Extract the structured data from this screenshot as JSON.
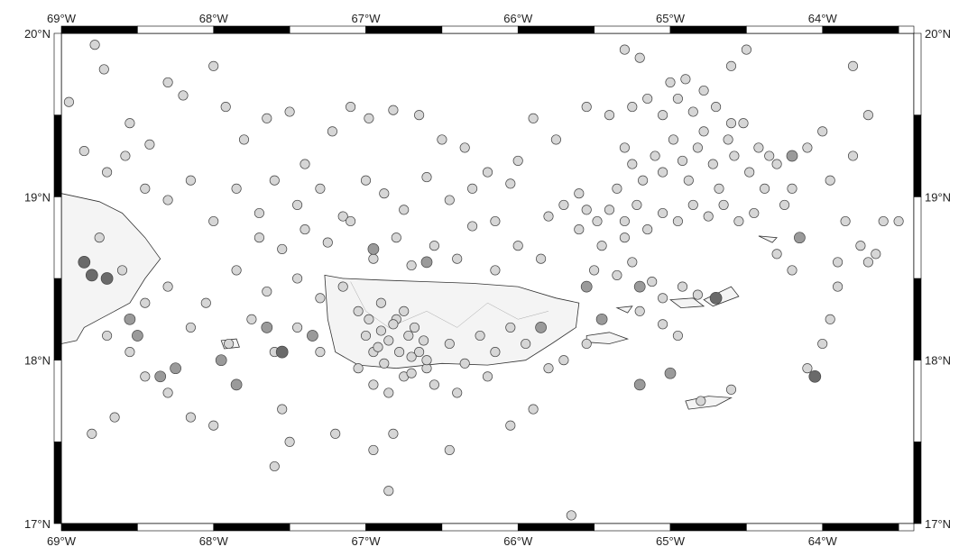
{
  "map": {
    "lon_range": [
      -69,
      -63.4
    ],
    "lat_range": [
      17,
      20
    ],
    "lon_ticks": [
      {
        "lon": -69,
        "label": "69°W"
      },
      {
        "lon": -68,
        "label": "68°W"
      },
      {
        "lon": -67,
        "label": "67°W"
      },
      {
        "lon": -66,
        "label": "66°W"
      },
      {
        "lon": -65,
        "label": "65°W"
      },
      {
        "lon": -64,
        "label": "64°W"
      }
    ],
    "lat_ticks_left": [
      {
        "lat": 20,
        "label": "20°N"
      },
      {
        "lat": 19,
        "label": "19°N"
      },
      {
        "lat": 18,
        "label": "18°N"
      },
      {
        "lat": 17,
        "label": "17°N"
      }
    ],
    "lat_ticks_right": [
      {
        "lat": 20,
        "label": "20°N"
      },
      {
        "lat": 19,
        "label": "19°N"
      },
      {
        "lat": 18,
        "label": "18°N"
      },
      {
        "lat": 17,
        "label": "17°N"
      }
    ],
    "colors": {
      "land_fill": "#f4f4f4",
      "coast": "#333333",
      "marker_light": "#d6d6d6",
      "marker_mid": "#9a9a9a",
      "marker_dark": "#6a6a6a",
      "marker_stroke": "#444444",
      "frame": "#000000"
    },
    "events": [
      [
        -68.78,
        19.93,
        0
      ],
      [
        -68.72,
        19.78,
        0
      ],
      [
        -68.55,
        19.45,
        0
      ],
      [
        -68.42,
        19.32,
        0
      ],
      [
        -68.3,
        19.7,
        0
      ],
      [
        -68.2,
        19.62,
        0
      ],
      [
        -68.0,
        19.8,
        0
      ],
      [
        -67.92,
        19.55,
        0
      ],
      [
        -67.8,
        19.35,
        0
      ],
      [
        -67.65,
        19.48,
        0
      ],
      [
        -67.5,
        19.52,
        0
      ],
      [
        -67.4,
        19.2,
        0
      ],
      [
        -67.22,
        19.4,
        0
      ],
      [
        -67.1,
        19.55,
        0
      ],
      [
        -66.98,
        19.48,
        0
      ],
      [
        -66.82,
        19.53,
        0
      ],
      [
        -66.65,
        19.5,
        0
      ],
      [
        -66.5,
        19.35,
        0
      ],
      [
        -66.35,
        19.3,
        0
      ],
      [
        -66.2,
        19.15,
        0
      ],
      [
        -66.0,
        19.22,
        0
      ],
      [
        -65.9,
        19.48,
        0
      ],
      [
        -65.75,
        19.35,
        0
      ],
      [
        -65.55,
        19.55,
        0
      ],
      [
        -65.4,
        19.5,
        0
      ],
      [
        -68.95,
        19.58,
        0
      ],
      [
        -68.85,
        19.28,
        0
      ],
      [
        -68.7,
        19.15,
        0
      ],
      [
        -68.58,
        19.25,
        0
      ],
      [
        -68.45,
        19.05,
        0
      ],
      [
        -68.3,
        18.98,
        0
      ],
      [
        -68.15,
        19.1,
        0
      ],
      [
        -68.0,
        18.85,
        0
      ],
      [
        -67.85,
        19.05,
        0
      ],
      [
        -67.7,
        18.9,
        0
      ],
      [
        -67.6,
        19.1,
        0
      ],
      [
        -67.45,
        18.95,
        0
      ],
      [
        -67.3,
        19.05,
        0
      ],
      [
        -67.15,
        18.88,
        0
      ],
      [
        -67.0,
        19.1,
        0
      ],
      [
        -66.88,
        19.02,
        0
      ],
      [
        -66.75,
        18.92,
        0
      ],
      [
        -66.6,
        19.12,
        0
      ],
      [
        -66.45,
        18.98,
        0
      ],
      [
        -66.3,
        19.05,
        0
      ],
      [
        -66.15,
        18.85,
        0
      ],
      [
        -66.05,
        19.08,
        0
      ],
      [
        -67.7,
        18.75,
        0
      ],
      [
        -67.55,
        18.68,
        0
      ],
      [
        -67.4,
        18.8,
        0
      ],
      [
        -67.25,
        18.72,
        0
      ],
      [
        -67.1,
        18.85,
        0
      ],
      [
        -66.95,
        18.62,
        0
      ],
      [
        -66.8,
        18.75,
        0
      ],
      [
        -66.7,
        18.58,
        0
      ],
      [
        -66.55,
        18.7,
        0
      ],
      [
        -66.4,
        18.62,
        0
      ],
      [
        -66.3,
        18.82,
        0
      ],
      [
        -66.15,
        18.55,
        0
      ],
      [
        -66.0,
        18.7,
        0
      ],
      [
        -65.85,
        18.62,
        0
      ],
      [
        -67.85,
        18.55,
        0
      ],
      [
        -67.65,
        18.42,
        0
      ],
      [
        -67.45,
        18.5,
        0
      ],
      [
        -67.3,
        18.38,
        0
      ],
      [
        -67.15,
        18.45,
        0
      ],
      [
        -67.05,
        18.3,
        0
      ],
      [
        -66.9,
        18.35,
        0
      ],
      [
        -66.8,
        18.25,
        0
      ],
      [
        -66.72,
        18.15,
        0
      ],
      [
        -66.65,
        18.05,
        0
      ],
      [
        -66.6,
        17.95,
        0
      ],
      [
        -66.55,
        17.85,
        0
      ],
      [
        -66.85,
        18.12,
        0
      ],
      [
        -66.95,
        18.05,
        0
      ],
      [
        -67.05,
        17.95,
        0
      ],
      [
        -66.95,
        17.85,
        0
      ],
      [
        -66.85,
        17.8,
        0
      ],
      [
        -66.75,
        17.9,
        0
      ],
      [
        -66.7,
        18.02,
        0
      ],
      [
        -66.45,
        18.1,
        0
      ],
      [
        -66.35,
        17.98,
        0
      ],
      [
        -66.25,
        18.15,
        0
      ],
      [
        -66.15,
        18.05,
        0
      ],
      [
        -66.05,
        18.2,
        0
      ],
      [
        -65.95,
        18.1,
        0
      ],
      [
        -66.2,
        17.9,
        0
      ],
      [
        -66.4,
        17.8,
        0
      ],
      [
        -66.98,
        18.25,
        0
      ],
      [
        -66.9,
        18.18,
        0
      ],
      [
        -66.82,
        18.22,
        0
      ],
      [
        -66.75,
        18.3,
        0
      ],
      [
        -66.68,
        18.2,
        0
      ],
      [
        -66.62,
        18.12,
        0
      ],
      [
        -66.78,
        18.05,
        0
      ],
      [
        -66.88,
        17.98,
        0
      ],
      [
        -66.7,
        17.92,
        0
      ],
      [
        -66.6,
        18.0,
        0
      ],
      [
        -67.0,
        18.15,
        0
      ],
      [
        -66.92,
        18.08,
        0
      ],
      [
        -66.95,
        17.45,
        0
      ],
      [
        -66.82,
        17.55,
        0
      ],
      [
        -66.85,
        17.2,
        0
      ],
      [
        -67.5,
        17.5,
        0
      ],
      [
        -67.6,
        17.35,
        0
      ],
      [
        -67.2,
        17.55,
        0
      ],
      [
        -66.45,
        17.45,
        0
      ],
      [
        -66.05,
        17.6,
        0
      ],
      [
        -65.9,
        17.7,
        0
      ],
      [
        -65.65,
        17.05,
        0
      ],
      [
        -68.75,
        18.75,
        0
      ],
      [
        -68.6,
        18.55,
        0
      ],
      [
        -68.45,
        18.35,
        0
      ],
      [
        -68.3,
        18.45,
        0
      ],
      [
        -68.15,
        18.2,
        0
      ],
      [
        -68.05,
        18.35,
        0
      ],
      [
        -67.9,
        18.1,
        0
      ],
      [
        -67.75,
        18.25,
        0
      ],
      [
        -67.6,
        18.05,
        0
      ],
      [
        -67.45,
        18.2,
        0
      ],
      [
        -67.3,
        18.05,
        0
      ],
      [
        -67.55,
        17.7,
        0
      ],
      [
        -68.45,
        17.9,
        0
      ],
      [
        -68.3,
        17.8,
        0
      ],
      [
        -68.15,
        17.65,
        0
      ],
      [
        -68.0,
        17.6,
        0
      ],
      [
        -68.65,
        17.65,
        0
      ],
      [
        -68.8,
        17.55,
        0
      ],
      [
        -68.55,
        18.05,
        0
      ],
      [
        -68.7,
        18.15,
        0
      ],
      [
        -68.85,
        18.6,
        2
      ],
      [
        -68.8,
        18.52,
        2
      ],
      [
        -68.7,
        18.5,
        2
      ],
      [
        -68.55,
        18.25,
        1
      ],
      [
        -68.5,
        18.15,
        1
      ],
      [
        -68.35,
        17.9,
        1
      ],
      [
        -68.25,
        17.95,
        1
      ],
      [
        -67.95,
        18.0,
        1
      ],
      [
        -67.85,
        17.85,
        1
      ],
      [
        -67.65,
        18.2,
        1
      ],
      [
        -67.55,
        18.05,
        2
      ],
      [
        -67.35,
        18.15,
        1
      ],
      [
        -66.95,
        18.68,
        1
      ],
      [
        -66.6,
        18.6,
        1
      ],
      [
        -65.85,
        18.2,
        1
      ],
      [
        -65.55,
        18.45,
        1
      ],
      [
        -65.45,
        18.25,
        1
      ],
      [
        -65.2,
        17.85,
        1
      ],
      [
        -64.7,
        18.38,
        2
      ],
      [
        -64.05,
        17.9,
        2
      ],
      [
        -64.2,
        19.25,
        1
      ],
      [
        -64.15,
        18.75,
        1
      ],
      [
        -65.2,
        18.45,
        1
      ],
      [
        -65.0,
        17.92,
        1
      ],
      [
        -65.3,
        19.3,
        0
      ],
      [
        -65.25,
        19.2,
        0
      ],
      [
        -65.18,
        19.1,
        0
      ],
      [
        -65.1,
        19.25,
        0
      ],
      [
        -65.05,
        19.15,
        0
      ],
      [
        -64.98,
        19.35,
        0
      ],
      [
        -64.92,
        19.22,
        0
      ],
      [
        -64.88,
        19.1,
        0
      ],
      [
        -64.82,
        19.3,
        0
      ],
      [
        -64.78,
        19.4,
        0
      ],
      [
        -64.72,
        19.2,
        0
      ],
      [
        -64.68,
        19.05,
        0
      ],
      [
        -64.62,
        19.35,
        0
      ],
      [
        -64.58,
        19.25,
        0
      ],
      [
        -64.52,
        19.45,
        0
      ],
      [
        -64.48,
        19.15,
        0
      ],
      [
        -64.42,
        19.3,
        0
      ],
      [
        -64.38,
        19.05,
        0
      ],
      [
        -65.35,
        19.05,
        0
      ],
      [
        -65.4,
        18.92,
        0
      ],
      [
        -65.3,
        18.85,
        0
      ],
      [
        -65.22,
        18.95,
        0
      ],
      [
        -65.15,
        18.8,
        0
      ],
      [
        -65.05,
        18.9,
        0
      ],
      [
        -64.95,
        18.85,
        0
      ],
      [
        -64.85,
        18.95,
        0
      ],
      [
        -64.75,
        18.88,
        0
      ],
      [
        -64.65,
        18.95,
        0
      ],
      [
        -64.55,
        18.85,
        0
      ],
      [
        -65.48,
        18.85,
        0
      ],
      [
        -65.55,
        18.92,
        0
      ],
      [
        -65.6,
        19.02,
        0
      ],
      [
        -65.7,
        18.95,
        0
      ],
      [
        -65.8,
        18.88,
        0
      ],
      [
        -65.25,
        19.55,
        0
      ],
      [
        -65.15,
        19.6,
        0
      ],
      [
        -65.05,
        19.5,
        0
      ],
      [
        -64.95,
        19.6,
        0
      ],
      [
        -64.85,
        19.52,
        0
      ],
      [
        -64.7,
        19.55,
        0
      ],
      [
        -64.6,
        19.45,
        0
      ],
      [
        -65.0,
        19.7,
        0
      ],
      [
        -64.9,
        19.72,
        0
      ],
      [
        -64.78,
        19.65,
        0
      ],
      [
        -65.2,
        19.85,
        0
      ],
      [
        -65.3,
        19.9,
        0
      ],
      [
        -64.6,
        19.8,
        0
      ],
      [
        -64.5,
        19.9,
        0
      ],
      [
        -64.3,
        19.2,
        0
      ],
      [
        -64.2,
        19.05,
        0
      ],
      [
        -64.1,
        19.3,
        0
      ],
      [
        -64.0,
        19.4,
        0
      ],
      [
        -63.95,
        19.1,
        0
      ],
      [
        -63.85,
        18.85,
        0
      ],
      [
        -63.75,
        18.7,
        0
      ],
      [
        -63.65,
        18.65,
        0
      ],
      [
        -63.8,
        19.25,
        0
      ],
      [
        -63.6,
        18.85,
        0
      ],
      [
        -63.5,
        18.85,
        0
      ],
      [
        -63.7,
        19.5,
        0
      ],
      [
        -63.8,
        19.8,
        0
      ],
      [
        -64.3,
        18.65,
        0
      ],
      [
        -64.2,
        18.55,
        0
      ],
      [
        -64.25,
        18.95,
        0
      ],
      [
        -64.35,
        19.25,
        0
      ],
      [
        -64.45,
        18.9,
        0
      ],
      [
        -63.9,
        18.6,
        0
      ],
      [
        -63.95,
        18.25,
        0
      ],
      [
        -64.0,
        18.1,
        0
      ],
      [
        -64.1,
        17.95,
        0
      ],
      [
        -63.9,
        18.45,
        0
      ],
      [
        -63.7,
        18.6,
        0
      ],
      [
        -65.5,
        18.55,
        0
      ],
      [
        -65.35,
        18.52,
        0
      ],
      [
        -65.25,
        18.6,
        0
      ],
      [
        -65.12,
        18.48,
        0
      ],
      [
        -65.05,
        18.38,
        0
      ],
      [
        -64.92,
        18.45,
        0
      ],
      [
        -64.82,
        18.4,
        0
      ],
      [
        -65.2,
        18.3,
        0
      ],
      [
        -65.05,
        18.22,
        0
      ],
      [
        -64.95,
        18.15,
        0
      ],
      [
        -65.55,
        18.1,
        0
      ],
      [
        -65.7,
        18.0,
        0
      ],
      [
        -65.8,
        17.95,
        0
      ],
      [
        -64.6,
        17.82,
        0
      ],
      [
        -64.8,
        17.75,
        0
      ],
      [
        -65.6,
        18.8,
        0
      ],
      [
        -65.45,
        18.7,
        0
      ],
      [
        -65.3,
        18.75,
        0
      ]
    ]
  }
}
